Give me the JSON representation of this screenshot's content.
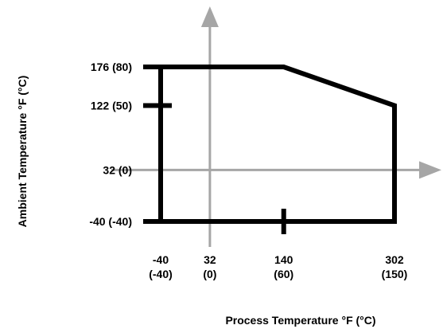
{
  "chart_data": {
    "type": "area",
    "xlabel": "Process Temperature °F (°C)",
    "ylabel": "Ambient Temperature °F (°C)",
    "xlim": [
      -60,
      330
    ],
    "ylim": [
      -60,
      210
    ],
    "grid": false,
    "x_ticks": [
      {
        "value": -40,
        "label_f": "-40",
        "label_c": "(-40)"
      },
      {
        "value": 32,
        "label_f": "32",
        "label_c": "(0)"
      },
      {
        "value": 140,
        "label_f": "140",
        "label_c": "(60)"
      },
      {
        "value": 302,
        "label_f": "302",
        "label_c": "(150)"
      }
    ],
    "y_ticks": [
      {
        "value": 176,
        "label": "176 (80)"
      },
      {
        "value": 122,
        "label": "122 (50)"
      },
      {
        "value": 32,
        "label": "32 (0)"
      },
      {
        "value": -40,
        "label": "-40 (-40)"
      }
    ],
    "boundary": [
      {
        "x": -40,
        "y": -40
      },
      {
        "x": -40,
        "y": 176
      },
      {
        "x": 140,
        "y": 176
      },
      {
        "x": 302,
        "y": 122
      },
      {
        "x": 302,
        "y": -40
      }
    ],
    "tick_marks": [
      {
        "axis": "y",
        "value": 122
      },
      {
        "axis": "x",
        "value": 140
      }
    ],
    "colors": {
      "boundary": "#000000",
      "axes": "#a6a6a6"
    }
  }
}
